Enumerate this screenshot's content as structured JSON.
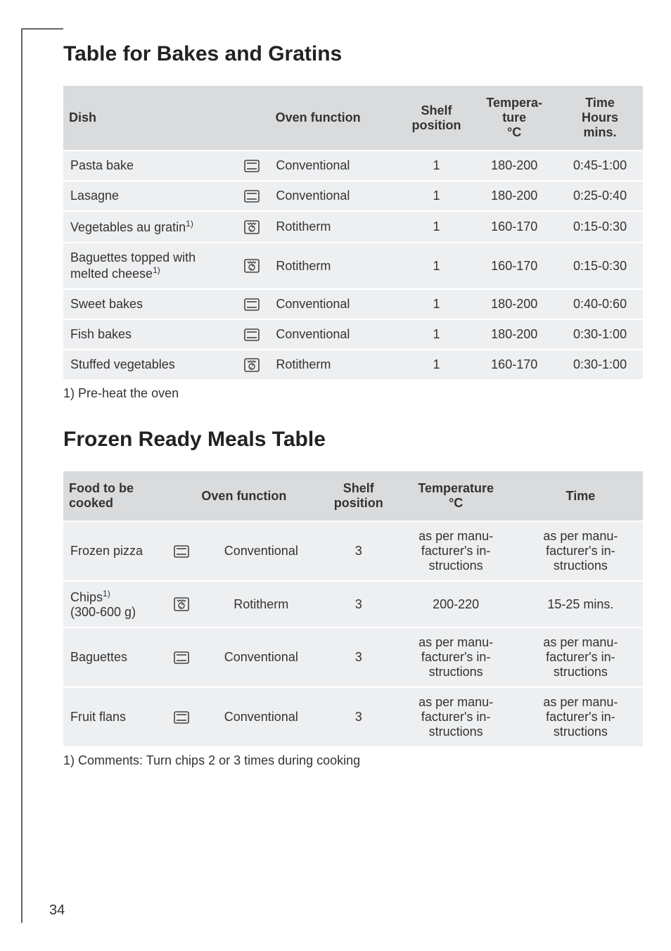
{
  "page_number": "34",
  "section1": {
    "heading": "Table for Bakes and Gratins",
    "headers": {
      "dish": "Dish",
      "oven_function": "Oven function",
      "shelf": "Shelf position",
      "temp": "Tempera-\nture\n°C",
      "time": "Time\nHours\nmins."
    },
    "rows": [
      {
        "dish": "Pasta bake",
        "dish_sup": "",
        "icon": "conv",
        "func": "Conventional",
        "shelf": "1",
        "temp": "180-200",
        "time": "0:45-1:00"
      },
      {
        "dish": "Lasagne",
        "dish_sup": "",
        "icon": "conv",
        "func": "Conventional",
        "shelf": "1",
        "temp": "180-200",
        "time": "0:25-0:40"
      },
      {
        "dish": "Vegetables au gratin",
        "dish_sup": "1)",
        "icon": "roti",
        "func": "Rotitherm",
        "shelf": "1",
        "temp": "160-170",
        "time": "0:15-0:30"
      },
      {
        "dish": "Baguettes topped with melted cheese",
        "dish_sup": "1)",
        "icon": "roti",
        "func": "Rotitherm",
        "shelf": "1",
        "temp": "160-170",
        "time": "0:15-0:30"
      },
      {
        "dish": "Sweet bakes",
        "dish_sup": "",
        "icon": "conv",
        "func": "Conventional",
        "shelf": "1",
        "temp": "180-200",
        "time": "0:40-0:60"
      },
      {
        "dish": "Fish bakes",
        "dish_sup": "",
        "icon": "conv",
        "func": "Conventional",
        "shelf": "1",
        "temp": "180-200",
        "time": "0:30-1:00"
      },
      {
        "dish": "Stuffed vegetables",
        "dish_sup": "",
        "icon": "roti",
        "func": "Rotitherm",
        "shelf": "1",
        "temp": "160-170",
        "time": "0:30-1:00"
      }
    ],
    "footnote": "1) Pre-heat the oven"
  },
  "section2": {
    "heading": "Frozen Ready Meals Table",
    "headers": {
      "food": "Food to be cooked",
      "oven_function": "Oven function",
      "shelf": "Shelf position",
      "temp": "Temperature\n°C",
      "time": "Time"
    },
    "rows": [
      {
        "food": "Frozen pizza",
        "food_sup": "",
        "food_extra": "",
        "icon": "conv",
        "func": "Conventional",
        "shelf": "3",
        "temp": "as per manu-\nfacturer's in-\nstructions",
        "time": "as per manu-\nfacturer's in-\nstructions"
      },
      {
        "food": "Chips",
        "food_sup": "1)",
        "food_extra": "(300-600 g)",
        "icon": "roti",
        "func": "Rotitherm",
        "shelf": "3",
        "temp": "200-220",
        "time": "15-25 mins."
      },
      {
        "food": "Baguettes",
        "food_sup": "",
        "food_extra": "",
        "icon": "conv",
        "func": "Conventional",
        "shelf": "3",
        "temp": "as per manu-\nfacturer's in-\nstructions",
        "time": "as per manu-\nfacturer's in-\nstructions"
      },
      {
        "food": "Fruit flans",
        "food_sup": "",
        "food_extra": "",
        "icon": "conv",
        "func": "Conventional",
        "shelf": "3",
        "temp": "as per manu-\nfacturer's in-\nstructions",
        "time": "as per manu-\nfacturer's in-\nstructions"
      }
    ],
    "footnote": "1) Comments: Turn chips 2 or 3 times during cooking"
  },
  "colors": {
    "header_bg": "#d9dbdd",
    "row_bg": "#edeff1",
    "text": "#333333"
  }
}
